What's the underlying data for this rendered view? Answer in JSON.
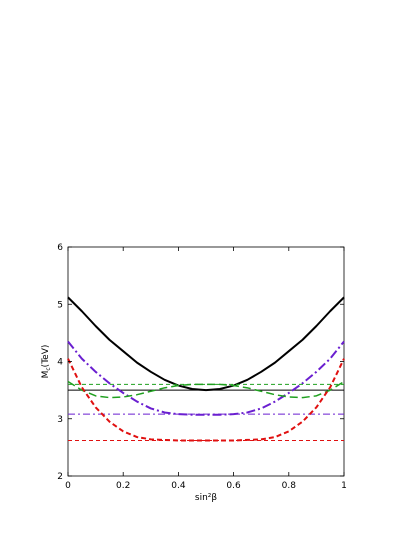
{
  "chart_data": {
    "type": "line",
    "title": "",
    "xlabel": "sin²β",
    "ylabel": "M",
    "ylabel_sub": "c",
    "ylabel_unit": "(TeV)",
    "xlim": [
      0,
      1
    ],
    "ylim": [
      2,
      6
    ],
    "xticks": [
      0,
      0.2,
      0.4,
      0.6,
      0.8,
      1
    ],
    "xtick_labels": [
      "0",
      "0.2",
      "0.4",
      "0.6",
      "0.8",
      "1"
    ],
    "yticks": [
      2,
      3,
      4,
      5,
      6
    ],
    "ytick_labels": [
      "2",
      "3",
      "4",
      "5",
      "6"
    ],
    "grid": false,
    "legend": "none",
    "series": [
      {
        "color": "#000000",
        "style": "solid",
        "width": 2,
        "x": [
          0,
          0.05,
          0.1,
          0.15,
          0.2,
          0.25,
          0.3,
          0.35,
          0.4,
          0.45,
          0.5,
          0.55,
          0.6,
          0.65,
          0.7,
          0.75,
          0.8,
          0.85,
          0.9,
          0.95,
          1
        ],
        "y": [
          5.12,
          4.88,
          4.62,
          4.38,
          4.18,
          3.98,
          3.82,
          3.68,
          3.58,
          3.52,
          3.5,
          3.52,
          3.58,
          3.68,
          3.82,
          3.98,
          4.18,
          4.38,
          4.62,
          4.88,
          5.12
        ]
      },
      {
        "color": "#000000",
        "style": "solid",
        "width": 1,
        "x": [
          0,
          1
        ],
        "y": [
          3.5,
          3.5
        ]
      },
      {
        "color": "#6a1fd0",
        "style": "dashdot",
        "width": 2,
        "x": [
          0,
          0.05,
          0.1,
          0.15,
          0.2,
          0.25,
          0.3,
          0.35,
          0.4,
          0.45,
          0.5,
          0.55,
          0.6,
          0.65,
          0.7,
          0.75,
          0.8,
          0.85,
          0.9,
          0.95,
          1
        ],
        "y": [
          4.35,
          4.05,
          3.82,
          3.62,
          3.45,
          3.3,
          3.18,
          3.11,
          3.08,
          3.07,
          3.07,
          3.07,
          3.08,
          3.11,
          3.18,
          3.3,
          3.45,
          3.62,
          3.82,
          4.05,
          4.35
        ]
      },
      {
        "color": "#6a1fd0",
        "style": "dashdot-thin",
        "width": 1,
        "x": [
          0,
          1
        ],
        "y": [
          3.08,
          3.08
        ]
      },
      {
        "color": "#1fa01f",
        "style": "longdash",
        "width": 1.5,
        "x": [
          0,
          0.05,
          0.1,
          0.15,
          0.2,
          0.25,
          0.3,
          0.35,
          0.4,
          0.45,
          0.5,
          0.55,
          0.6,
          0.65,
          0.7,
          0.75,
          0.8,
          0.85,
          0.9,
          0.95,
          1
        ],
        "y": [
          3.65,
          3.5,
          3.4,
          3.37,
          3.38,
          3.42,
          3.48,
          3.54,
          3.58,
          3.6,
          3.6,
          3.6,
          3.58,
          3.54,
          3.48,
          3.42,
          3.38,
          3.37,
          3.4,
          3.5,
          3.65
        ]
      },
      {
        "color": "#1fa01f",
        "style": "dash-thin",
        "width": 1,
        "x": [
          0,
          1
        ],
        "y": [
          3.6,
          3.6
        ]
      },
      {
        "color": "#e01010",
        "style": "dash",
        "width": 2,
        "x": [
          0,
          0.05,
          0.1,
          0.15,
          0.2,
          0.25,
          0.3,
          0.35,
          0.4,
          0.45,
          0.5,
          0.55,
          0.6,
          0.65,
          0.7,
          0.75,
          0.8,
          0.85,
          0.9,
          0.95,
          1
        ],
        "y": [
          4.05,
          3.55,
          3.2,
          2.95,
          2.78,
          2.68,
          2.64,
          2.63,
          2.62,
          2.62,
          2.62,
          2.62,
          2.62,
          2.63,
          2.64,
          2.68,
          2.78,
          2.95,
          3.2,
          3.55,
          4.05
        ]
      },
      {
        "color": "#e01010",
        "style": "dash-thin",
        "width": 1,
        "x": [
          0,
          1
        ],
        "y": [
          2.62,
          2.62
        ]
      }
    ]
  }
}
